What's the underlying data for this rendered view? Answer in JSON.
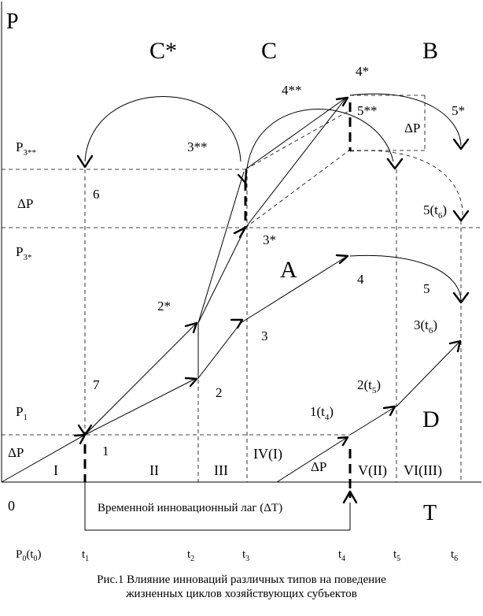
{
  "axis": {
    "y_label": "P",
    "x_label": "T",
    "origin": "0",
    "p1_main": "P",
    "p1_sub": "1",
    "p3star_main": "P",
    "p3star_sub": "3*",
    "p3dstar_main": "P",
    "p3dstar_sub": "3**",
    "dp_left_top": "ΔP",
    "dp_left_bottom": "ΔP"
  },
  "quadrants": {
    "c_star": "C*",
    "c": "C",
    "b": "B",
    "a": "A",
    "d": "D"
  },
  "points": {
    "p1": "1",
    "p2": "2",
    "p2s": "2*",
    "p3": "3",
    "p3s": "3*",
    "p3ss": "3**",
    "p3t6": "3(t",
    "p3t6_sub": "6",
    "p3t6_close": ")",
    "p4": "4",
    "p4s": "4*",
    "p4ss": "4**",
    "p5": "5",
    "p5s": "5*",
    "p5ss": "5**",
    "p5t6": "5(t",
    "p5t6_sub": "6",
    "p5t6_close": ")",
    "p6": "6",
    "p7": "7",
    "p1t4": "1(t",
    "p1t4_sub": "4",
    "p1t4_close": ")",
    "p2t5": "2(t",
    "p2t5_sub": "5",
    "p2t5_close": ")",
    "dp_right": "ΔP",
    "dp_bottom": "ΔP"
  },
  "phases": [
    "I",
    "II",
    "III",
    "IV(I)",
    "V(II)",
    "VI(III)"
  ],
  "lag_label": "Временной инновационный лаг (ΔT)",
  "time_ticks": {
    "p0_main": "P",
    "p0_sub": "0",
    "p0_paren": "(t",
    "p0_paren_sub": "0",
    "p0_close": ")",
    "t_main": "t",
    "t_subs": [
      "1",
      "2",
      "3",
      "4",
      "5",
      "6"
    ]
  },
  "caption": {
    "line1": "Рис.1 Влияние инноваций различных типов на поведение",
    "line2": "жизненных циклов хозяйствующих субъектов"
  }
}
